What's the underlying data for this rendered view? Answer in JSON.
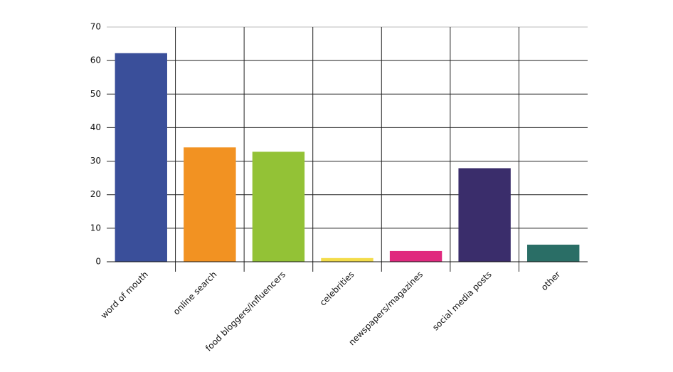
{
  "chart_data": {
    "type": "bar",
    "categories": [
      "word of mouth",
      "online search",
      "food bloggers/influencers",
      "celebrities",
      "newspapers/magazines",
      "social media posts",
      "other"
    ],
    "values": [
      62.2,
      34.1,
      32.8,
      1.1,
      3.2,
      27.9,
      5.1
    ],
    "colors": [
      "#3a4f9a",
      "#f29222",
      "#93c236",
      "#f3dc4a",
      "#e0297e",
      "#3a2d6b",
      "#2a6e66"
    ],
    "ylim": [
      0,
      70
    ],
    "yticks": [
      0,
      10,
      20,
      30,
      40,
      50,
      60,
      70
    ],
    "grid": true
  }
}
